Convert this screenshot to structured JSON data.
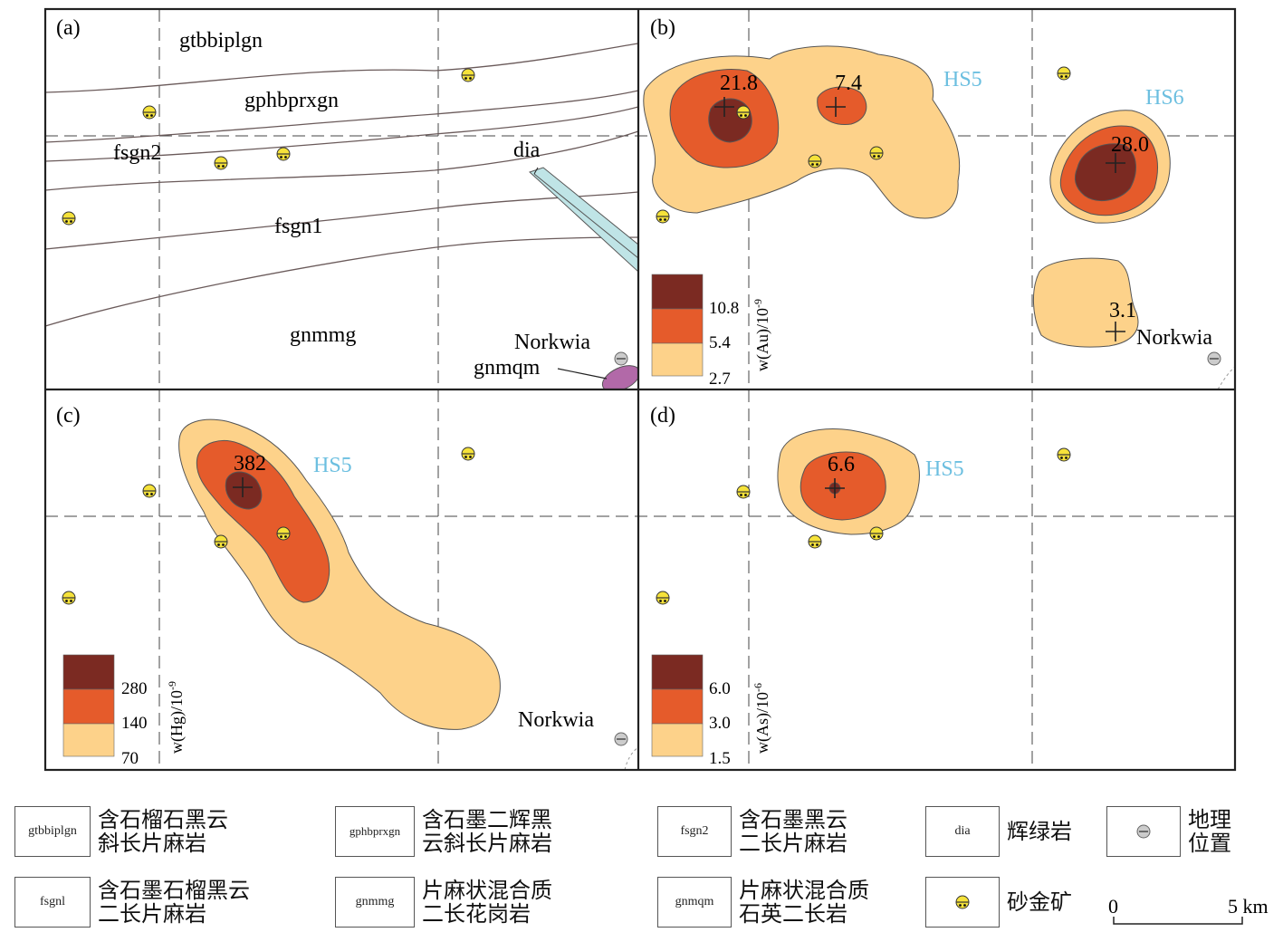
{
  "panels": {
    "a": {
      "label": "(a)",
      "units": [
        "gtbbiplgn",
        "gphbprxgn",
        "fsgn2",
        "fsgn1",
        "gnmmg",
        "dia",
        "gnmqm"
      ],
      "place": "Norkwia"
    },
    "b": {
      "label": "(b)",
      "anomalies": [
        "HS5",
        "HS6"
      ],
      "peaks": [
        "21.8",
        "7.4",
        "28.0",
        "3.1"
      ],
      "place": "Norkwia",
      "legend_title": "w(Au)/10",
      "legend_exp": "-9",
      "legend_values": [
        "10.8",
        "5.4",
        "2.7"
      ]
    },
    "c": {
      "label": "(c)",
      "anomalies": [
        "HS5"
      ],
      "peaks": [
        "382"
      ],
      "place": "Norkwia",
      "legend_title": "w(Hg)/10",
      "legend_exp": "-9",
      "legend_values": [
        "280",
        "140",
        "70"
      ]
    },
    "d": {
      "label": "(d)",
      "anomalies": [
        "HS5"
      ],
      "peaks": [
        "6.6"
      ],
      "legend_title": "w(As)/10",
      "legend_exp": "-6",
      "legend_values": [
        "6.0",
        "3.0",
        "1.5"
      ]
    }
  },
  "colors": {
    "high": "#7b2a22",
    "mid": "#e55b2b",
    "low": "#fdd28a",
    "anomaly_label": "#6cbfe0",
    "dia_fill": "#bfe4e6",
    "gnmqm_fill": "#b269a8"
  },
  "legend": [
    {
      "code": "gtbbiplgn",
      "text": "含石榴石黑云\n斜长片麻岩"
    },
    {
      "code": "gphbprxgn",
      "text": "含石墨二辉黑\n云斜长片麻岩"
    },
    {
      "code": "fsgn2",
      "text": "含石墨黑云\n二长片麻岩"
    },
    {
      "code": "dia",
      "text": "辉绿岩"
    },
    {
      "code": "",
      "text": "地理\n位置",
      "icon": "location-icon"
    },
    {
      "code": "fsgnl",
      "text": "含石墨石榴黑云\n二长片麻岩"
    },
    {
      "code": "gnmmg",
      "text": "片麻状混合质\n二长花岗岩"
    },
    {
      "code": "gnmqm",
      "text": "片麻状混合质\n石英二长岩"
    },
    {
      "code": "",
      "text": "砂金矿",
      "icon": "placer-gold-icon"
    }
  ],
  "scale": {
    "start": "0",
    "end": "5 km"
  }
}
